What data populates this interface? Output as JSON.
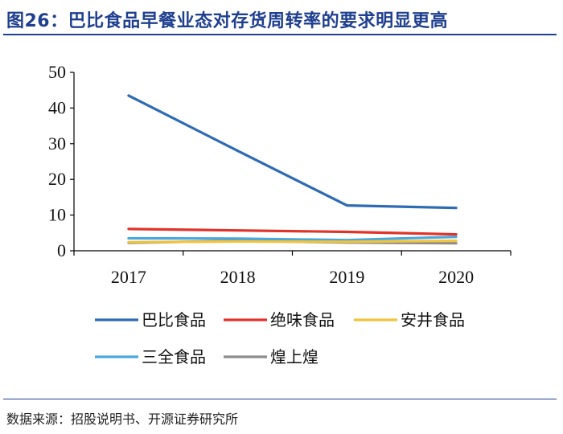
{
  "title": "图26：巴比食品早餐业态对存货周转率的要求明显更高",
  "source": "数据来源：招股说明书、开源证券研究所",
  "chart_data": {
    "type": "line",
    "categories": [
      "2017",
      "2018",
      "2019",
      "2020"
    ],
    "ylim": [
      0,
      50
    ],
    "yticks": [
      0,
      10,
      20,
      30,
      40,
      50
    ],
    "grid": false,
    "legend_position": "bottom",
    "series": [
      {
        "name": "巴比食品",
        "color": "#2e6bb5",
        "values": [
          43.5,
          28.0,
          12.7,
          12.0
        ]
      },
      {
        "name": "绝味食品",
        "color": "#e0342a",
        "values": [
          6.1,
          5.7,
          5.3,
          4.6
        ]
      },
      {
        "name": "安井食品",
        "color": "#f2c33c",
        "values": [
          2.4,
          2.6,
          2.5,
          2.8
        ]
      },
      {
        "name": "三全食品",
        "color": "#4aa8e0",
        "values": [
          3.5,
          3.4,
          3.0,
          3.9
        ]
      },
      {
        "name": "煌上煌",
        "color": "#8c8c8c",
        "values": [
          2.2,
          2.8,
          2.3,
          2.1
        ]
      }
    ]
  }
}
